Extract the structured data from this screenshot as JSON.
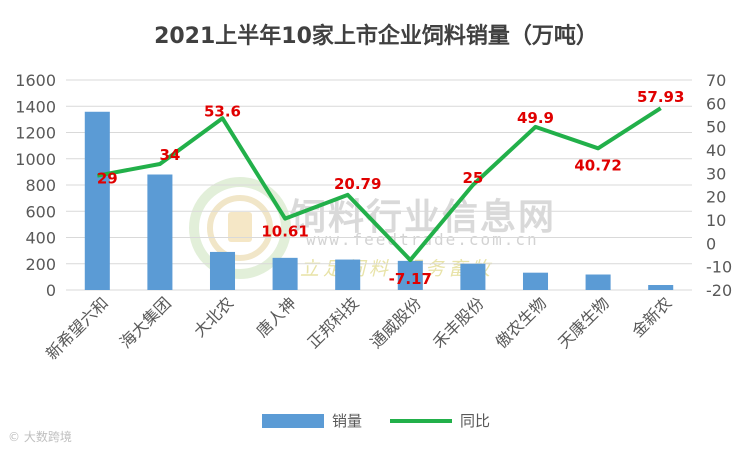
{
  "credit_text": "大数跨境",
  "watermark": {
    "name": "饲料行业信息网",
    "url": "www.feedtrade.com.cn",
    "slogan": "立足饲料 服务畜牧"
  },
  "colors": {
    "bar": "#5b9bd5",
    "line": "#22b04a",
    "label": "#e00000",
    "axis": "#595959",
    "grid": "#d9d9d9"
  },
  "chart_data": {
    "type": "bar",
    "title": "2021上半年10家上市企业饲料销量（万吨）",
    "categories": [
      "新希望六和",
      "海大集团",
      "大北农",
      "唐人神",
      "正邦科技",
      "通威股份",
      "禾丰股份",
      "傲农生物",
      "天康生物",
      "金新农"
    ],
    "series": [
      {
        "name": "销量",
        "type": "bar",
        "axis": "left",
        "values": [
          1358,
          880,
          290,
          245,
          232,
          222,
          200,
          132,
          118,
          38
        ]
      },
      {
        "name": "同比",
        "type": "line",
        "axis": "right",
        "values": [
          29,
          34,
          53.6,
          10.61,
          20.79,
          -7.17,
          25,
          49.9,
          40.72,
          57.93
        ],
        "labels": [
          "29",
          "34",
          "53.6",
          "10.61",
          "20.79",
          "-7.17",
          "25",
          "49.9",
          "40.72",
          "57.93"
        ]
      }
    ],
    "y_left": {
      "min": 0,
      "max": 1600,
      "ticks": [
        "0",
        "200",
        "400",
        "600",
        "800",
        "1000",
        "1200",
        "1400",
        "1600"
      ]
    },
    "y_right": {
      "min": -20,
      "max": 70,
      "ticks": [
        "-20",
        "-10",
        "0",
        "10",
        "20",
        "30",
        "40",
        "50",
        "60",
        "70"
      ]
    },
    "grid": true,
    "legend_position": "bottom"
  }
}
